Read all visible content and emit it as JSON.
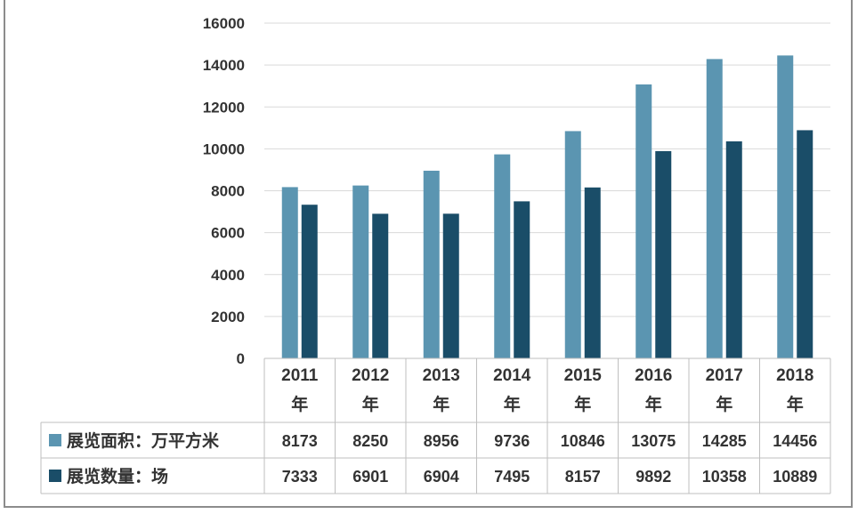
{
  "chart_data": {
    "type": "bar",
    "categories": [
      "2011年",
      "2012年",
      "2013年",
      "2014年",
      "2015年",
      "2016年",
      "2017年",
      "2018年"
    ],
    "series": [
      {
        "name": "展览面积：万平方米",
        "color": "#5b95b1",
        "values": [
          8173,
          8250,
          8956,
          9736,
          10846,
          13075,
          14285,
          14456
        ]
      },
      {
        "name": "展览数量：场",
        "color": "#1a4d68",
        "values": [
          7333,
          6901,
          6904,
          7495,
          8157,
          9892,
          10358,
          10889
        ]
      }
    ],
    "ylim": [
      0,
      16000
    ],
    "yticks": [
      "0",
      "2000",
      "4000",
      "6000",
      "8000",
      "10000",
      "12000",
      "14000",
      "16000"
    ],
    "grid": true,
    "data_table": true
  }
}
